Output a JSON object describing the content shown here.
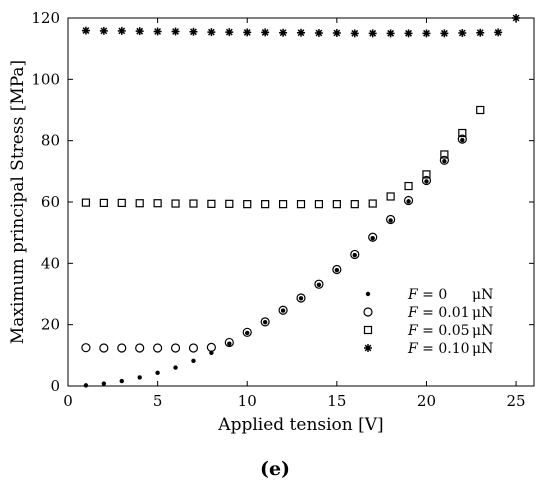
{
  "caption": "(e)",
  "chart_data": {
    "type": "scatter",
    "xlabel": "Applied tension [V]",
    "ylabel": "Maximum principal Stress [MPa]",
    "xlim": [
      0,
      26
    ],
    "ylim": [
      0,
      120
    ],
    "xticks": [
      0,
      5,
      10,
      15,
      20,
      25
    ],
    "yticks": [
      0,
      20,
      40,
      60,
      80,
      100,
      120
    ],
    "legend_position": "bottom-right",
    "series": [
      {
        "name": "F = 0 μN",
        "legend_parts": [
          "F",
          " = 0",
          "μN"
        ],
        "marker": "dot",
        "x": [
          1,
          2,
          3,
          4,
          5,
          6,
          7,
          8,
          9,
          10,
          11,
          12,
          13,
          14,
          15,
          16,
          17,
          18,
          19,
          20,
          21,
          22
        ],
        "y": [
          0.2,
          0.8,
          1.6,
          2.8,
          4.3,
          6.0,
          8.2,
          10.8,
          13.8,
          17.3,
          20.8,
          24.6,
          28.6,
          33.0,
          37.8,
          42.7,
          48.2,
          54.0,
          60.2,
          66.7,
          73.3,
          80.2
        ]
      },
      {
        "name": "F = 0.01 μN",
        "legend_parts": [
          "F",
          " = 0.01",
          "μN"
        ],
        "marker": "circle",
        "x": [
          1,
          2,
          3,
          4,
          5,
          6,
          7,
          8,
          9,
          10,
          11,
          12,
          13,
          14,
          15,
          16,
          17,
          18,
          19,
          20,
          21,
          22
        ],
        "y": [
          12.5,
          12.4,
          12.4,
          12.4,
          12.4,
          12.4,
          12.4,
          12.6,
          14.2,
          17.5,
          20.9,
          24.7,
          28.7,
          33.2,
          38.0,
          42.9,
          48.5,
          54.3,
          60.5,
          67.0,
          73.6,
          80.5
        ]
      },
      {
        "name": "F = 0.05 μN",
        "legend_parts": [
          "F",
          " = 0.05",
          "μN"
        ],
        "marker": "square",
        "x": [
          1,
          2,
          3,
          4,
          5,
          6,
          7,
          8,
          9,
          10,
          11,
          12,
          13,
          14,
          15,
          16,
          17,
          18,
          19,
          20,
          21,
          22,
          23
        ],
        "y": [
          59.8,
          59.7,
          59.7,
          59.6,
          59.6,
          59.5,
          59.5,
          59.4,
          59.4,
          59.3,
          59.3,
          59.3,
          59.3,
          59.3,
          59.3,
          59.3,
          59.5,
          61.8,
          65.2,
          69.0,
          75.5,
          82.5,
          90.0
        ]
      },
      {
        "name": "F = 0.10 μN",
        "legend_parts": [
          "F",
          " = 0.10",
          "μN"
        ],
        "marker": "star",
        "x": [
          1,
          2,
          3,
          4,
          5,
          6,
          7,
          8,
          9,
          10,
          11,
          12,
          13,
          14,
          15,
          16,
          17,
          18,
          19,
          20,
          21,
          22,
          23,
          24,
          25
        ],
        "y": [
          115.9,
          115.8,
          115.8,
          115.7,
          115.6,
          115.6,
          115.5,
          115.4,
          115.4,
          115.3,
          115.3,
          115.2,
          115.2,
          115.1,
          115.1,
          115.0,
          115.0,
          115.0,
          115.0,
          115.0,
          115.0,
          115.1,
          115.2,
          115.3,
          120.0
        ]
      }
    ]
  }
}
